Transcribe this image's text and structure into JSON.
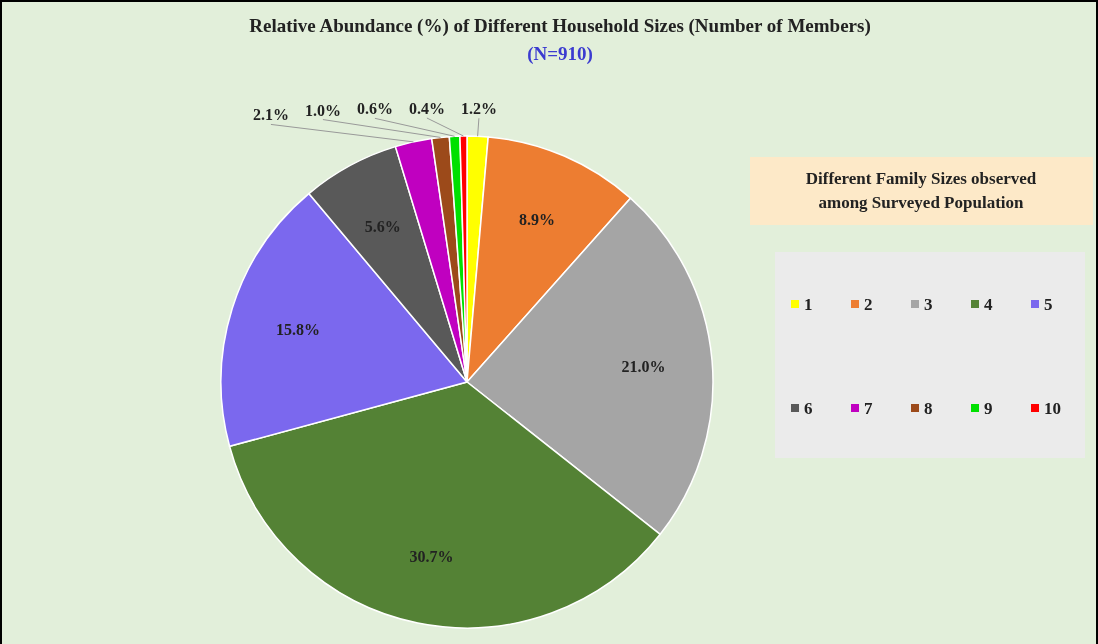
{
  "chart_data": {
    "type": "pie",
    "title": "Relative Abundance (%) of Different Household Sizes (Number of Members)",
    "subtitle": "(N=910)",
    "legend_title": "Different Family Sizes observed among Surveyed Population",
    "categories": [
      "1",
      "2",
      "3",
      "4",
      "5",
      "6",
      "7",
      "8",
      "9",
      "10"
    ],
    "values": [
      1.2,
      8.9,
      21.0,
      30.7,
      15.8,
      5.6,
      2.1,
      1.0,
      0.6,
      0.4
    ],
    "colors": [
      "#ffff00",
      "#ed7d31",
      "#a5a5a5",
      "#548235",
      "#7b68ee",
      "#595959",
      "#c000c0",
      "#9c4a1a",
      "#00e000",
      "#ff0000"
    ],
    "value_labels": [
      "1.2%",
      "8.9%",
      "21.0%",
      "30.7%",
      "15.8%",
      "5.6%",
      "2.1%",
      "1.0%",
      "0.6%",
      "0.4%"
    ],
    "legend": "right"
  }
}
